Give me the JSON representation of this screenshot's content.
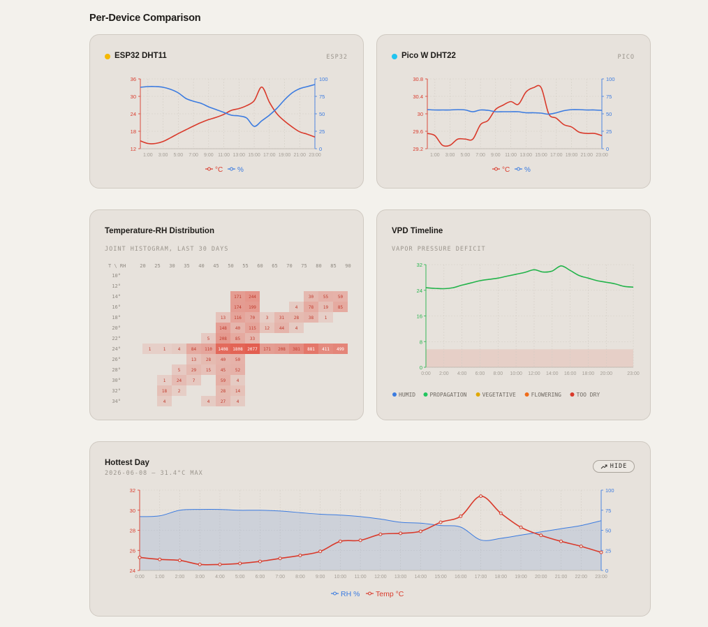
{
  "page": {
    "section_title": "Per-Device Comparison"
  },
  "cards": {
    "esp32": {
      "title": "ESP32 DHT11",
      "tag": "ESP32",
      "dot_color": "#f5b800"
    },
    "pico": {
      "title": "Pico W DHT22",
      "tag": "PICO",
      "dot_color": "#22c4f0"
    },
    "heatmap": {
      "title": "Temperature-RH Distribution",
      "subtitle": "JOINT HISTOGRAM, LAST 30 DAYS"
    },
    "vpd": {
      "title": "VPD Timeline",
      "subtitle": "VAPOR PRESSURE DEFICIT"
    },
    "hottest": {
      "title": "Hottest Day",
      "subtitle": "2026-06-08 — 31.4°C MAX",
      "hide_label": "HIDE"
    }
  },
  "colors": {
    "temp": "#d93a2b",
    "rh": "#3b7be0",
    "vpd": "#22b34a",
    "humid": "#3b7be0",
    "propagation": "#22c55e",
    "vegetative": "#e0a800",
    "flowering": "#ef6c1a",
    "too_dry": "#d93a2b"
  },
  "chart_data": [
    {
      "id": "esp32",
      "type": "line",
      "x": [
        "0:00",
        "1:00",
        "2:00",
        "3:00",
        "4:00",
        "5:00",
        "6:00",
        "7:00",
        "8:00",
        "9:00",
        "10:00",
        "11:00",
        "12:00",
        "13:00",
        "14:00",
        "15:00",
        "16:00",
        "17:00",
        "18:00",
        "19:00",
        "20:00",
        "21:00",
        "22:00",
        "23:00"
      ],
      "x_tick_labels": [
        "1:00",
        "3:00",
        "5:00",
        "7:00",
        "9:00",
        "11:00",
        "13:00",
        "15:00",
        "17:00",
        "19:00",
        "21:00",
        "23:00"
      ],
      "series": [
        {
          "name": "°C",
          "axis": "left",
          "values": [
            14.7,
            13.8,
            13.8,
            14.5,
            15.8,
            17.2,
            18.5,
            19.8,
            21,
            22,
            22.8,
            23.8,
            25.2,
            25.8,
            26.8,
            28.5,
            33.2,
            28,
            24,
            21.5,
            19.5,
            17.8,
            17,
            16
          ]
        },
        {
          "name": "%",
          "axis": "right",
          "values": [
            88,
            89,
            89,
            88,
            85,
            80,
            72,
            68,
            65,
            60,
            56,
            52,
            48,
            47,
            44,
            32,
            40,
            48,
            58,
            70,
            80,
            86,
            89,
            92
          ]
        }
      ],
      "ylim_left": [
        12,
        36
      ],
      "yticks_left": [
        12,
        18,
        24,
        30,
        36
      ],
      "ylim_right": [
        0,
        100
      ],
      "yticks_right": [
        0,
        25,
        50,
        75,
        100
      ]
    },
    {
      "id": "pico",
      "type": "line",
      "x": [
        "0:00",
        "1:00",
        "2:00",
        "3:00",
        "4:00",
        "5:00",
        "6:00",
        "7:00",
        "8:00",
        "9:00",
        "10:00",
        "11:00",
        "12:00",
        "13:00",
        "14:00",
        "15:00",
        "16:00",
        "17:00",
        "18:00",
        "19:00",
        "20:00",
        "21:00",
        "22:00",
        "23:00"
      ],
      "x_tick_labels": [
        "1:00",
        "3:00",
        "5:00",
        "7:00",
        "9:00",
        "11:00",
        "13:00",
        "15:00",
        "17:00",
        "19:00",
        "21:00",
        "23:00"
      ],
      "series": [
        {
          "name": "°C",
          "axis": "left",
          "values": [
            29.55,
            29.5,
            29.28,
            29.28,
            29.42,
            29.42,
            29.42,
            29.75,
            29.85,
            30.1,
            30.2,
            30.28,
            30.22,
            30.5,
            30.6,
            30.6,
            30.0,
            29.9,
            29.75,
            29.7,
            29.58,
            29.55,
            29.55,
            29.5
          ]
        },
        {
          "name": "%",
          "axis": "right",
          "values": [
            56,
            55.5,
            55.5,
            55.5,
            56,
            55.5,
            53,
            55.5,
            55,
            53,
            53,
            53,
            53,
            51.5,
            51.5,
            51,
            49.5,
            51.5,
            54.5,
            56,
            56,
            55.5,
            55.5,
            55
          ]
        }
      ],
      "ylim_left": [
        29.2,
        30.8
      ],
      "yticks_left": [
        29.2,
        29.6,
        30,
        30.4,
        30.8
      ],
      "ytick_labels_left": [
        "29.2",
        "29.6",
        "30",
        "30.4",
        "30.8"
      ],
      "ylim_right": [
        0,
        100
      ],
      "yticks_right": [
        0,
        25,
        50,
        75,
        100
      ]
    },
    {
      "id": "heatmap",
      "type": "heatmap",
      "corner_label": "T \\ RH",
      "columns": [
        "20",
        "25",
        "30",
        "35",
        "40",
        "45",
        "50",
        "55",
        "60",
        "65",
        "70",
        "75",
        "80",
        "85",
        "90"
      ],
      "rows": [
        "10°",
        "12°",
        "14°",
        "16°",
        "18°",
        "20°",
        "22°",
        "24°",
        "26°",
        "28°",
        "30°",
        "32°",
        "34°"
      ],
      "values": [
        [
          null,
          null,
          null,
          null,
          null,
          null,
          null,
          null,
          null,
          null,
          null,
          null,
          null,
          null,
          null
        ],
        [
          null,
          null,
          null,
          null,
          null,
          null,
          null,
          null,
          null,
          null,
          null,
          null,
          null,
          null,
          null
        ],
        [
          null,
          null,
          null,
          null,
          null,
          null,
          null,
          171,
          244,
          null,
          null,
          null,
          30,
          55,
          50
        ],
        [
          null,
          null,
          null,
          null,
          null,
          null,
          null,
          174,
          199,
          null,
          null,
          4,
          78,
          19,
          85
        ],
        [
          null,
          null,
          null,
          null,
          null,
          null,
          13,
          116,
          70,
          3,
          31,
          28,
          38,
          1,
          null
        ],
        [
          null,
          null,
          null,
          null,
          null,
          null,
          148,
          40,
          115,
          12,
          44,
          4,
          null,
          null,
          null
        ],
        [
          null,
          null,
          null,
          null,
          null,
          5,
          208,
          85,
          33,
          null,
          null,
          null,
          null,
          null,
          null
        ],
        [
          null,
          1,
          1,
          4,
          84,
          110,
          1408,
          1808,
          2077,
          171,
          208,
          381,
          881,
          411,
          499
        ],
        [
          null,
          null,
          null,
          null,
          13,
          28,
          40,
          50,
          null,
          null,
          null,
          null,
          null,
          null,
          null
        ],
        [
          null,
          null,
          null,
          5,
          29,
          15,
          45,
          52,
          null,
          null,
          null,
          null,
          null,
          null,
          null
        ],
        [
          null,
          null,
          1,
          24,
          7,
          null,
          59,
          4,
          null,
          null,
          null,
          null,
          null,
          null,
          null
        ],
        [
          null,
          null,
          18,
          2,
          null,
          null,
          28,
          14,
          null,
          null,
          null,
          null,
          null,
          null,
          null
        ],
        [
          null,
          null,
          4,
          null,
          null,
          4,
          27,
          4,
          null,
          null,
          null,
          null,
          null,
          null,
          null
        ]
      ]
    },
    {
      "id": "vpd",
      "type": "line",
      "x": [
        "0:00",
        "1:00",
        "2:00",
        "3:00",
        "4:00",
        "5:00",
        "6:00",
        "7:00",
        "8:00",
        "9:00",
        "10:00",
        "11:00",
        "12:00",
        "13:00",
        "14:00",
        "15:00",
        "16:00",
        "17:00",
        "18:00",
        "19:00",
        "20:00",
        "21:00",
        "22:00",
        "23:00"
      ],
      "x_tick_labels": [
        "0:00",
        "2:00",
        "4:00",
        "6:00",
        "8:00",
        "10:00",
        "12:00",
        "14:00",
        "16:00",
        "18:00",
        "20:00",
        "23:00"
      ],
      "series": [
        {
          "name": "VPD",
          "values": [
            24.8,
            24.6,
            24.5,
            24.8,
            25.6,
            26.3,
            27.0,
            27.4,
            27.8,
            28.4,
            29.0,
            29.6,
            30.4,
            29.7,
            30.0,
            31.6,
            30.2,
            28.6,
            27.8,
            27.0,
            26.5,
            26.0,
            25.2,
            25.0
          ]
        }
      ],
      "ylim": [
        0,
        32
      ],
      "yticks": [
        0,
        8,
        16,
        24,
        32
      ],
      "band": [
        0,
        5.6
      ],
      "legend": [
        "HUMID",
        "PROPAGATION",
        "VEGETATIVE",
        "FLOWERING",
        "TOO DRY"
      ]
    },
    {
      "id": "hottest",
      "type": "line",
      "x": [
        "0:00",
        "1:00",
        "2:00",
        "3:00",
        "4:00",
        "5:00",
        "6:00",
        "7:00",
        "8:00",
        "9:00",
        "10:00",
        "11:00",
        "12:00",
        "13:00",
        "14:00",
        "15:00",
        "16:00",
        "17:00",
        "18:00",
        "19:00",
        "20:00",
        "21:00",
        "22:00",
        "23:00"
      ],
      "series": [
        {
          "name": "RH %",
          "axis": "right",
          "kind": "area",
          "values": [
            67,
            68,
            75,
            76,
            76,
            75,
            75,
            74,
            72,
            70,
            69,
            67,
            64,
            60,
            59,
            56,
            54,
            38,
            40,
            44,
            48,
            52,
            56,
            62
          ]
        },
        {
          "name": "Temp °C",
          "axis": "left",
          "values": [
            25.3,
            25.1,
            25.0,
            24.6,
            24.6,
            24.7,
            24.9,
            25.2,
            25.5,
            25.9,
            26.9,
            27.0,
            27.6,
            27.7,
            27.9,
            28.8,
            29.4,
            31.4,
            29.7,
            28.3,
            27.5,
            26.9,
            26.4,
            25.8
          ]
        }
      ],
      "ylim_left": [
        24,
        32
      ],
      "yticks_left": [
        24,
        26,
        28,
        30,
        32
      ],
      "ylim_right": [
        0,
        100
      ],
      "yticks_right": [
        0,
        25,
        50,
        75,
        100
      ]
    }
  ]
}
